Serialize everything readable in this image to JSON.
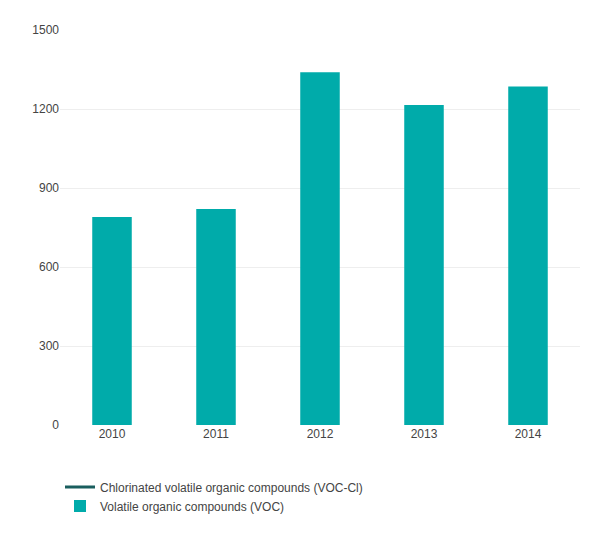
{
  "chart_data": {
    "type": "bar",
    "categories": [
      "2010",
      "2011",
      "2012",
      "2013",
      "2014"
    ],
    "series": [
      {
        "name": "Chlorinated volatile organic compounds (VOC-Cl)",
        "color": "#1a5e5e",
        "type": "line",
        "values": [
          null,
          null,
          null,
          null,
          null
        ]
      },
      {
        "name": "Volatile organic compounds (VOC)",
        "color": "#00ABAA",
        "type": "bar",
        "values": [
          790,
          820,
          1340,
          1215,
          1285
        ]
      }
    ],
    "ylim": [
      0,
      1500
    ],
    "yticks": [
      0,
      300,
      600,
      900,
      1200,
      1500
    ],
    "grid": true,
    "legend": "bottom left"
  }
}
